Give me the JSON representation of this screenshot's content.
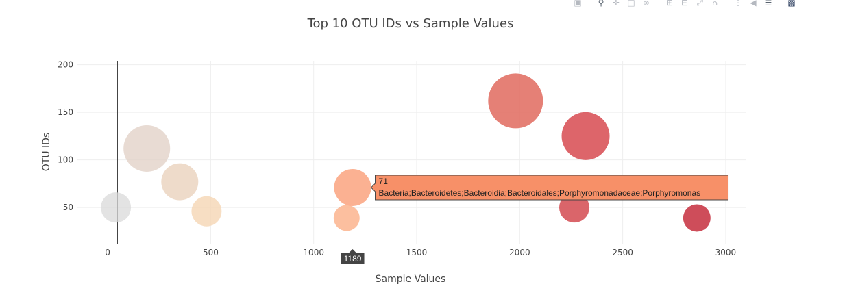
{
  "modebar": {
    "icons": [
      "camera-icon",
      "zoom-icon",
      "pan-icon",
      "box-select-icon",
      "lasso-select-icon",
      "zoom-in-icon",
      "zoom-out-icon",
      "autoscale-icon",
      "reset-axes-icon",
      "spike-lines-icon",
      "hover-closest-icon",
      "hover-compare-icon",
      "plotly-logo-icon"
    ]
  },
  "chart_data": {
    "type": "scatter",
    "title": "Top 10 OTU IDs vs Sample Values",
    "xlabel": "Sample Values",
    "ylabel": "OTU IDs",
    "xlim": [
      -150,
      3100
    ],
    "ylim": [
      12,
      204
    ],
    "xticks": [
      0,
      500,
      1000,
      1500,
      2000,
      2500,
      3000
    ],
    "yticks": [
      50,
      100,
      150,
      200
    ],
    "grid": true,
    "colorscale": "reds",
    "points": [
      {
        "x": 40,
        "y": 50,
        "color": "#d9d9d9",
        "opacity": 0.75
      },
      {
        "x": 190,
        "y": 112,
        "color": "#e0cfc4",
        "opacity": 0.75
      },
      {
        "x": 350,
        "y": 77,
        "color": "#ead2bd",
        "opacity": 0.8
      },
      {
        "x": 480,
        "y": 46,
        "color": "#f5d6b4",
        "opacity": 0.8
      },
      {
        "x": 1160,
        "y": 39,
        "color": "#fbb48e",
        "opacity": 0.85
      },
      {
        "x": 1189,
        "y": 71,
        "color": "#fba886",
        "opacity": 0.9
      },
      {
        "x": 1980,
        "y": 162,
        "color": "#e06a5e",
        "opacity": 0.85
      },
      {
        "x": 2320,
        "y": 125,
        "color": "#d9545a",
        "opacity": 0.9
      },
      {
        "x": 2265,
        "y": 50,
        "color": "#d6545a",
        "opacity": 0.9
      },
      {
        "x": 2860,
        "y": 39,
        "color": "#c93a48",
        "opacity": 0.9
      }
    ],
    "hover": {
      "x_label": "1189",
      "y_label": "71",
      "text": "Bacteria;Bacteroidetes;Bacteroidia;Bacteroidales;Porphyromonadaceae;Porphyromonas",
      "box_color": "#f79068"
    }
  }
}
